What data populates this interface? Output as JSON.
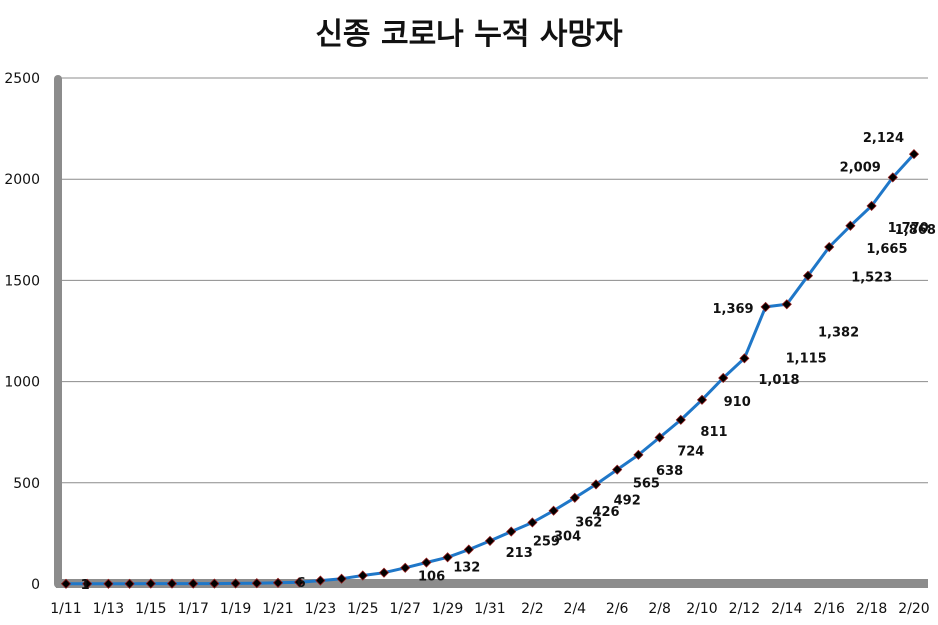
{
  "chart_data": {
    "type": "line",
    "title": "신종 코로나 누적 사망자",
    "xlabel": "",
    "ylabel": "",
    "ylim": [
      0,
      2500
    ],
    "yticks": [
      0,
      500,
      1000,
      1500,
      2000,
      2500
    ],
    "grid": true,
    "legend": "none",
    "x": [
      "1/11",
      "1/12",
      "1/13",
      "1/14",
      "1/15",
      "1/16",
      "1/17",
      "1/18",
      "1/19",
      "1/20",
      "1/21",
      "1/22",
      "1/23",
      "1/24",
      "1/25",
      "1/26",
      "1/27",
      "1/28",
      "1/29",
      "1/30",
      "1/31",
      "2/1",
      "2/2",
      "2/3",
      "2/4",
      "2/5",
      "2/6",
      "2/7",
      "2/8",
      "2/9",
      "2/10",
      "2/11",
      "2/12",
      "2/13",
      "2/14",
      "2/15",
      "2/16",
      "2/17",
      "2/18",
      "2/19",
      "2/20"
    ],
    "xtick_labels": [
      "1/11",
      "1/13",
      "1/15",
      "1/17",
      "1/19",
      "1/21",
      "1/23",
      "1/25",
      "1/27",
      "1/29",
      "1/31",
      "2/2",
      "2/4",
      "2/6",
      "2/8",
      "2/10",
      "2/12",
      "2/14",
      "2/16",
      "2/18",
      "2/20"
    ],
    "series": [
      {
        "name": "누적 사망자",
        "color": "#1f77c8",
        "marker_color": "#000000",
        "values": [
          1,
          1,
          1,
          1,
          2,
          2,
          2,
          2,
          3,
          4,
          6,
          9,
          17,
          26,
          42,
          56,
          80,
          106,
          132,
          170,
          213,
          259,
          304,
          362,
          426,
          492,
          565,
          638,
          724,
          811,
          910,
          1018,
          1115,
          1369,
          1382,
          1523,
          1665,
          1770,
          1868,
          2009,
          2124
        ]
      }
    ],
    "data_labels": [
      {
        "x": "1/12",
        "text": "1"
      },
      {
        "x": "1/22",
        "text": "6"
      },
      {
        "x": "1/29",
        "text": "106"
      },
      {
        "x": "1/30",
        "text": "132"
      },
      {
        "x": "2/1",
        "text": "213"
      },
      {
        "x": "2/2",
        "text": "259"
      },
      {
        "x": "2/3",
        "text": "304"
      },
      {
        "x": "2/4",
        "text": "362"
      },
      {
        "x": "2/5",
        "text": "426"
      },
      {
        "x": "2/6",
        "text": "492"
      },
      {
        "x": "2/7",
        "text": "565"
      },
      {
        "x": "2/8",
        "text": "638"
      },
      {
        "x": "2/9",
        "text": "724"
      },
      {
        "x": "2/10",
        "text": "811"
      },
      {
        "x": "2/11",
        "text": "910"
      },
      {
        "x": "2/12",
        "text": "1,018"
      },
      {
        "x": "2/13",
        "text": "1,115"
      },
      {
        "x": "2/13",
        "text": "1,369"
      },
      {
        "x": "2/15",
        "text": "1,382"
      },
      {
        "x": "2/16",
        "text": "1,523"
      },
      {
        "x": "2/17",
        "text": "1,665"
      },
      {
        "x": "2/18",
        "text": "1,770"
      },
      {
        "x": "2/19",
        "text": "1,868"
      },
      {
        "x": "2/19",
        "text": "2,009"
      },
      {
        "x": "2/20",
        "text": "2,124"
      }
    ]
  }
}
